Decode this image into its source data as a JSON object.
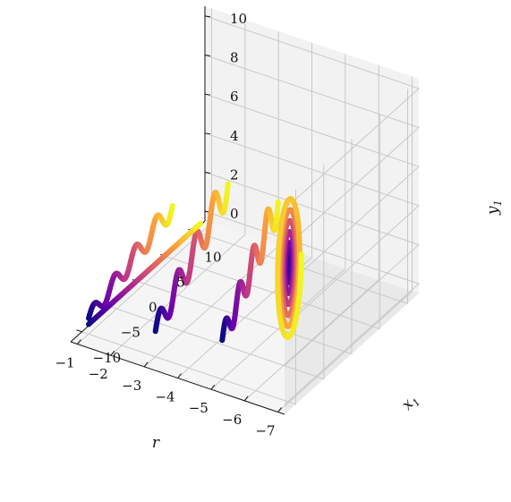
{
  "chart_data": {
    "type": "line3d",
    "title": "",
    "axes": {
      "r": {
        "label": "r",
        "range": [
          -7.2,
          -0.8
        ],
        "ticks": [
          "−7",
          "−6",
          "−5",
          "−4",
          "−3",
          "−2",
          "−1"
        ],
        "tick_values": [
          -7,
          -6,
          -5,
          -4,
          -3,
          -2,
          -1
        ]
      },
      "x1": {
        "label": "x",
        "label_sub": "1",
        "range": [
          -12,
          12
        ],
        "ticks": [
          "−10",
          "−5",
          "0",
          "5",
          "10"
        ],
        "tick_values": [
          -10,
          -5,
          0,
          5,
          10
        ]
      },
      "y1": {
        "label": "y",
        "label_sub": "1",
        "range": [
          -0.5,
          10.5
        ],
        "ticks": [
          "0",
          "2",
          "4",
          "6",
          "8",
          "10"
        ],
        "tick_values": [
          0,
          2,
          4,
          6,
          8,
          10
        ]
      }
    },
    "grid": true,
    "colormap": "plasma",
    "colors": [
      "#0d0887",
      "#6a00a8",
      "#b12a90",
      "#e16462",
      "#fca636",
      "#f0f921"
    ],
    "series": [
      {
        "r": -7,
        "shape": "spiral",
        "x_center": -10,
        "y_center": 6.5,
        "turns": 6,
        "max_radius_x": 2.2,
        "max_radius_y": 3.8
      },
      {
        "r": -5,
        "shape": "wave",
        "x_start": -10,
        "x_end": 0,
        "y_start": 1.5,
        "y_end": 6.0,
        "amplitude": 1.0
      },
      {
        "r": -3,
        "shape": "wave",
        "x_start": -10,
        "x_end": 3,
        "y_start": 0.8,
        "y_end": 5.0,
        "amplitude": 1.0
      },
      {
        "r": -1,
        "shape": "wave",
        "x_start": -10,
        "x_end": 5,
        "y_start": 0.3,
        "y_end": 2.2,
        "amplitude": 0.6
      },
      {
        "r": -1,
        "shape": "line",
        "x_start": -10,
        "x_end": 10,
        "y_start": 0,
        "y_end": 0
      }
    ]
  }
}
